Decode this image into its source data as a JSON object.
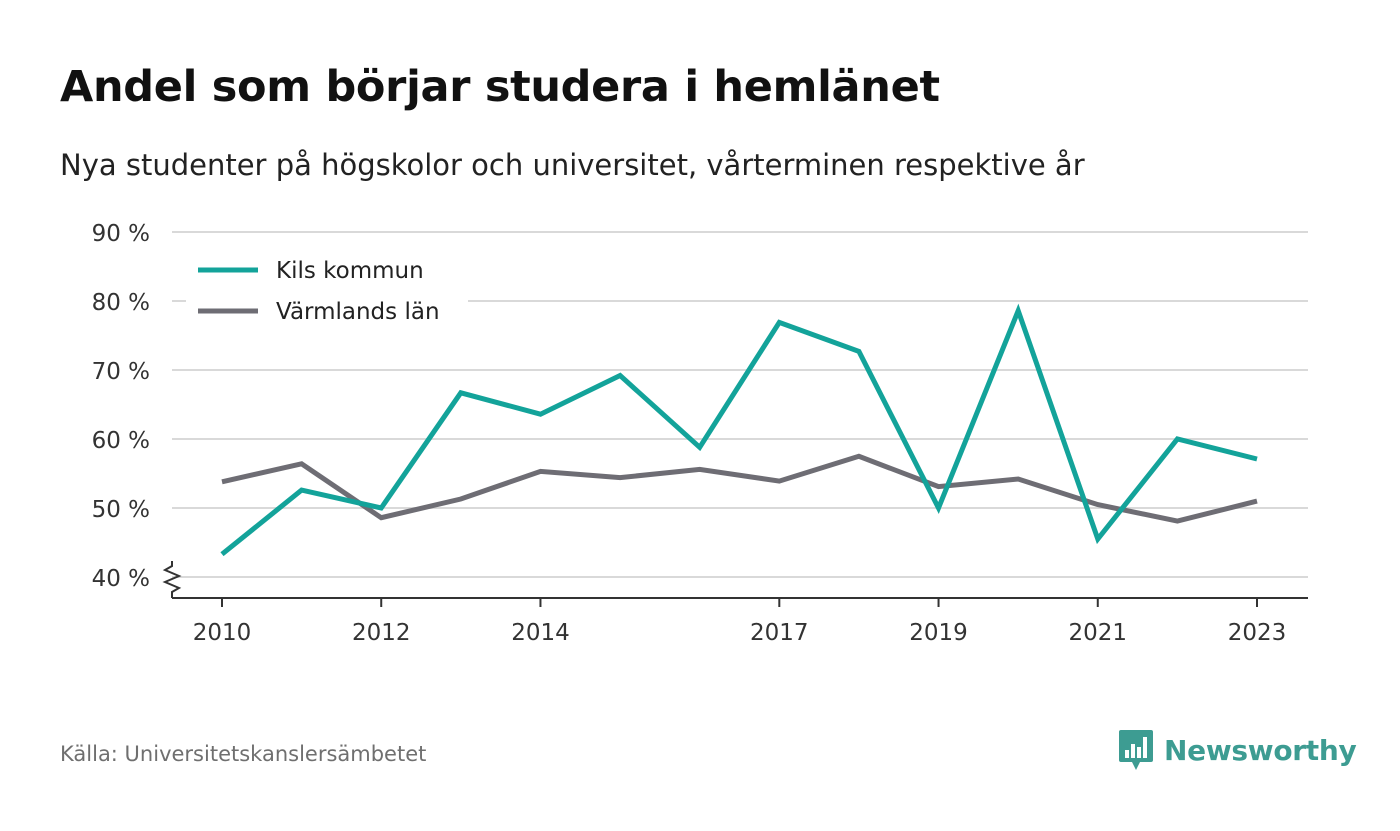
{
  "title": "Andel som börjar studera i hemlänet",
  "subtitle": "Nya studenter på högskolor och universitet, vårterminen respektive år",
  "source": "Källa: Universitetskanslersämbetet",
  "brand": "Newsworthy",
  "colors": {
    "kils": "#13a39a",
    "varmland": "#6e6d74",
    "grid": "#d9d9d9",
    "axis": "#333333",
    "brand": "#3d9c92"
  },
  "chart_data": {
    "type": "line",
    "x": [
      2010,
      2011,
      2012,
      2013,
      2014,
      2015,
      2016,
      2017,
      2018,
      2019,
      2020,
      2021,
      2022,
      2023
    ],
    "xticks": [
      {
        "value": 2010,
        "label": "2010"
      },
      {
        "value": 2012,
        "label": "2012"
      },
      {
        "value": 2014,
        "label": "2014"
      },
      {
        "value": 2017,
        "label": "2017"
      },
      {
        "value": 2019,
        "label": "2019"
      },
      {
        "value": 2021,
        "label": "2021"
      },
      {
        "value": 2023,
        "label": "2023"
      }
    ],
    "yticks": [
      {
        "value": 40,
        "label": "40 %"
      },
      {
        "value": 50,
        "label": "50 %"
      },
      {
        "value": 60,
        "label": "60 %"
      },
      {
        "value": 70,
        "label": "70 %"
      },
      {
        "value": 80,
        "label": "80 %"
      },
      {
        "value": 90,
        "label": "90 %"
      }
    ],
    "ylim": [
      40,
      90
    ],
    "xlim": [
      2010,
      2023
    ],
    "grid": true,
    "y_axis_break": true,
    "legend_position": "top-left",
    "series": [
      {
        "name": "Kils kommun",
        "color": "#13a39a",
        "values": [
          43.3,
          52.6,
          50.0,
          66.7,
          63.6,
          69.2,
          58.8,
          76.9,
          72.7,
          50.0,
          78.6,
          45.5,
          60.0,
          57.1
        ]
      },
      {
        "name": "Värmlands län",
        "color": "#6e6d74",
        "values": [
          53.8,
          56.4,
          48.6,
          51.3,
          55.3,
          54.4,
          55.6,
          53.9,
          57.5,
          53.1,
          54.2,
          50.5,
          48.1,
          51.0
        ]
      }
    ]
  }
}
